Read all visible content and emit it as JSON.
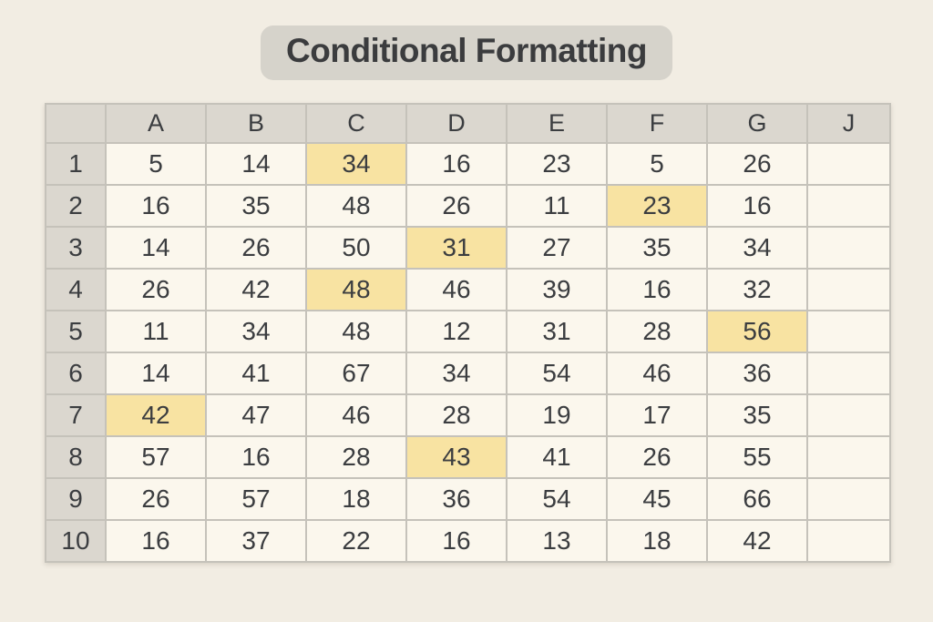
{
  "page": {
    "background": "#F2EDE3"
  },
  "title": {
    "label": "Conditional Formatting"
  },
  "spreadsheet": {
    "column_headers": [
      "A",
      "B",
      "C",
      "D",
      "E",
      "F",
      "G",
      "J"
    ],
    "row_headers": [
      "1",
      "2",
      "3",
      "4",
      "5",
      "6",
      "7",
      "8",
      "9",
      "10"
    ],
    "rows": [
      [
        "5",
        "14",
        "34",
        "16",
        "23",
        "5",
        "26",
        ""
      ],
      [
        "16",
        "35",
        "48",
        "26",
        "11",
        "23",
        "16",
        ""
      ],
      [
        "14",
        "26",
        "50",
        "31",
        "27",
        "35",
        "34",
        ""
      ],
      [
        "26",
        "42",
        "48",
        "46",
        "39",
        "16",
        "32",
        ""
      ],
      [
        "11",
        "34",
        "48",
        "12",
        "31",
        "28",
        "56",
        ""
      ],
      [
        "14",
        "41",
        "67",
        "34",
        "54",
        "46",
        "36",
        ""
      ],
      [
        "42",
        "47",
        "46",
        "28",
        "19",
        "17",
        "35",
        ""
      ],
      [
        "57",
        "16",
        "28",
        "43",
        "41",
        "26",
        "55",
        ""
      ],
      [
        "26",
        "57",
        "18",
        "36",
        "54",
        "45",
        "66",
        ""
      ],
      [
        "16",
        "37",
        "22",
        "16",
        "13",
        "18",
        "42",
        ""
      ]
    ],
    "highlighted_cells": [
      "C1",
      "F2",
      "D3",
      "C4",
      "G5",
      "A7",
      "D8"
    ],
    "colors": {
      "highlight": "#F8E3A2",
      "header_bg": "#DBD7CF",
      "cell_bg": "#FBF7ED",
      "grid_line": "#C5C2BA",
      "cell_text": "#3B3D40",
      "title_badge": "#D6D3CB",
      "title_text": "#3B3C3E"
    },
    "layout": {
      "row_header_col_width": 66,
      "data_col_width": 110,
      "last_col_width": 91
    }
  }
}
